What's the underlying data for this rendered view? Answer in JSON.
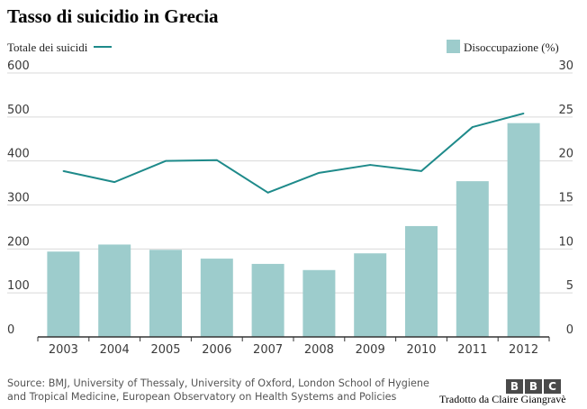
{
  "chart_data": {
    "type": "bar",
    "title": "Tasso di suicidio in Grecia",
    "categories": [
      "2003",
      "2004",
      "2005",
      "2006",
      "2007",
      "2008",
      "2009",
      "2010",
      "2011",
      "2012"
    ],
    "series": [
      {
        "name": "Disoccupazione (%)",
        "type": "bar",
        "axis": "right",
        "values": [
          9.7,
          10.5,
          9.9,
          8.9,
          8.3,
          7.6,
          9.5,
          12.6,
          17.7,
          24.3
        ]
      },
      {
        "name": "Totale dei suicidi",
        "type": "line",
        "axis": "left",
        "values": [
          377,
          352,
          400,
          402,
          328,
          373,
          391,
          377,
          477,
          508
        ]
      }
    ],
    "y_left": {
      "ylim": [
        0,
        600
      ],
      "ticks": [
        "0",
        "100",
        "200",
        "300",
        "400",
        "500",
        "600"
      ]
    },
    "y_right": {
      "ylim": [
        0,
        30
      ],
      "ticks": [
        "0",
        "5",
        "10",
        "15",
        "20",
        "25",
        "30"
      ]
    },
    "grid": true,
    "colors": {
      "bar": "#9dcccc",
      "line": "#1e8a8a",
      "grid": "#d9d9d9",
      "axis": "#333333"
    }
  },
  "legend": {
    "line_label": "Totale dei suicidi",
    "bar_label": "Disoccupazione (%)"
  },
  "footer": {
    "source_line1": "Source: BMJ, University of Thessaly, University of Oxford, London School of Hygiene",
    "source_line2": "and Tropical Medicine, European Observatory on Health Systems and Policies",
    "logo_letters": [
      "B",
      "B",
      "C"
    ],
    "translator": "Tradotto da Claire Giangravè"
  }
}
